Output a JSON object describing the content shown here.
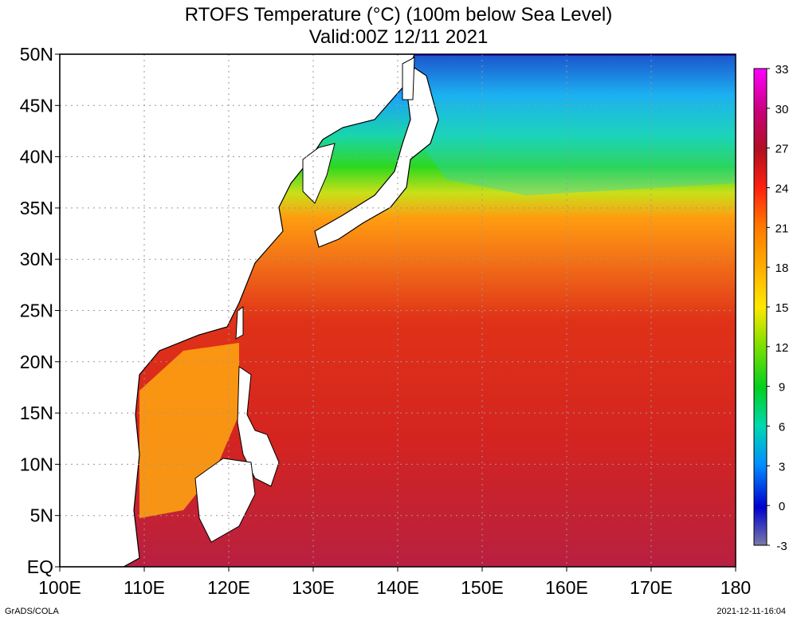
{
  "title_line1": "RTOFS Temperature (°C) (100m below Sea Level)",
  "title_line2": "Valid:00Z 12/11 2021",
  "credit": "GrADS/COLA",
  "timestamp": "2021-12-11-16:04",
  "map": {
    "lon_range": [
      100,
      180
    ],
    "lat_range": [
      0,
      50
    ],
    "lat_ticks": [
      {
        "value": 50,
        "label": "50N"
      },
      {
        "value": 45,
        "label": "45N"
      },
      {
        "value": 40,
        "label": "40N"
      },
      {
        "value": 35,
        "label": "35N"
      },
      {
        "value": 30,
        "label": "30N"
      },
      {
        "value": 25,
        "label": "25N"
      },
      {
        "value": 20,
        "label": "20N"
      },
      {
        "value": 15,
        "label": "15N"
      },
      {
        "value": 10,
        "label": "10N"
      },
      {
        "value": 5,
        "label": "5N"
      },
      {
        "value": 0,
        "label": "EQ"
      }
    ],
    "lon_ticks": [
      {
        "value": 100,
        "label": "100E"
      },
      {
        "value": 110,
        "label": "110E"
      },
      {
        "value": 120,
        "label": "120E"
      },
      {
        "value": 130,
        "label": "130E"
      },
      {
        "value": 140,
        "label": "140E"
      },
      {
        "value": 150,
        "label": "150E"
      },
      {
        "value": 160,
        "label": "160E"
      },
      {
        "value": 170,
        "label": "170E"
      },
      {
        "value": 180,
        "label": "180"
      }
    ],
    "grid": true,
    "colorbar": {
      "labels": [
        "33",
        "30",
        "27",
        "24",
        "21",
        "18",
        "15",
        "12",
        "9",
        "6",
        "3",
        "0",
        "-3"
      ],
      "colors": [
        "#e600e6",
        "#c8008c",
        "#a00050",
        "#e0201e",
        "#ff6000",
        "#ffa000",
        "#ffe000",
        "#a0e000",
        "#00d000",
        "#00d0b0",
        "#0080ff",
        "#0000c8",
        "#7878a0"
      ]
    }
  }
}
